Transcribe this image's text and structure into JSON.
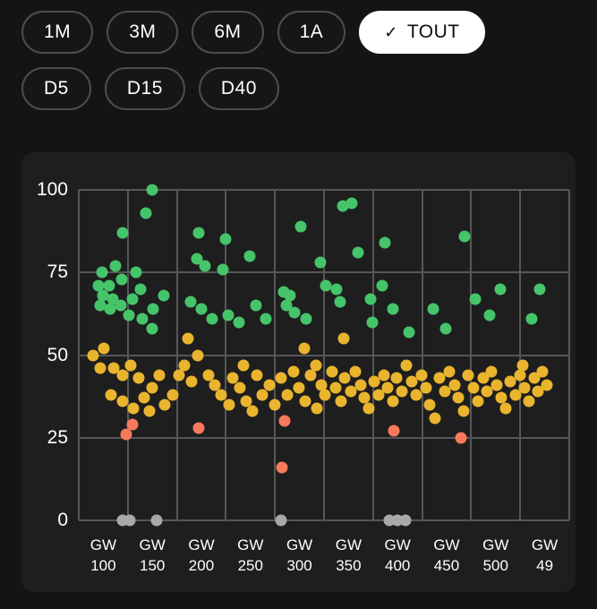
{
  "filters": {
    "rows": [
      {
        "items": [
          {
            "label": "1M",
            "selected": false
          },
          {
            "label": "3M",
            "selected": false
          },
          {
            "label": "6M",
            "selected": false
          },
          {
            "label": "1A",
            "selected": false
          },
          {
            "label": "TOUT",
            "selected": true,
            "check": "✓"
          }
        ]
      },
      {
        "items": [
          {
            "label": "D5",
            "selected": false
          },
          {
            "label": "D15",
            "selected": false
          },
          {
            "label": "D40",
            "selected": false
          }
        ]
      }
    ]
  },
  "chart_data": {
    "type": "scatter",
    "title": "",
    "xlabel": "",
    "ylabel": "",
    "xlim": [
      75,
      575
    ],
    "ylim": [
      0,
      100
    ],
    "yticks": [
      100,
      75,
      50,
      25,
      0
    ],
    "grid": true,
    "legend": "none",
    "x_categories": [
      {
        "l1": "GW",
        "l2": "100"
      },
      {
        "l1": "GW",
        "l2": "150"
      },
      {
        "l1": "GW",
        "l2": "200"
      },
      {
        "l1": "GW",
        "l2": "250"
      },
      {
        "l1": "GW",
        "l2": "300"
      },
      {
        "l1": "GW",
        "l2": "350"
      },
      {
        "l1": "GW",
        "l2": "400"
      },
      {
        "l1": "GW",
        "l2": "450"
      },
      {
        "l1": "GW",
        "l2": "500"
      },
      {
        "l1": "GW",
        "l2": "49"
      }
    ],
    "colors": {
      "g": "#45c46a",
      "y": "#e9b42e",
      "o": "#f8795c",
      "n": "#a8a8a8"
    },
    "point_format": [
      "gw",
      "value",
      "color"
    ],
    "points": [
      [
        150,
        100,
        "g"
      ],
      [
        143,
        93,
        "g"
      ],
      [
        344,
        95,
        "g"
      ],
      [
        353,
        96,
        "g"
      ],
      [
        120,
        87,
        "g"
      ],
      [
        197,
        87,
        "g"
      ],
      [
        225,
        85,
        "g"
      ],
      [
        301,
        89,
        "g"
      ],
      [
        468,
        86,
        "g"
      ],
      [
        387,
        84,
        "g"
      ],
      [
        360,
        81,
        "g"
      ],
      [
        99,
        75,
        "g"
      ],
      [
        112,
        77,
        "g"
      ],
      [
        195,
        79,
        "g"
      ],
      [
        204,
        77,
        "g"
      ],
      [
        222,
        76,
        "g"
      ],
      [
        249,
        80,
        "g"
      ],
      [
        321,
        78,
        "g"
      ],
      [
        95,
        71,
        "g"
      ],
      [
        106,
        71,
        "g"
      ],
      [
        119,
        73,
        "g"
      ],
      [
        133,
        75,
        "g"
      ],
      [
        100,
        68,
        "g"
      ],
      [
        110,
        67,
        "g"
      ],
      [
        97,
        65,
        "g"
      ],
      [
        107,
        64,
        "g"
      ],
      [
        118,
        65,
        "g"
      ],
      [
        130,
        67,
        "g"
      ],
      [
        138,
        70,
        "g"
      ],
      [
        126,
        62,
        "g"
      ],
      [
        140,
        61,
        "g"
      ],
      [
        151,
        64,
        "g"
      ],
      [
        162,
        68,
        "g"
      ],
      [
        150,
        58,
        "g"
      ],
      [
        189,
        66,
        "g"
      ],
      [
        200,
        64,
        "g"
      ],
      [
        211,
        61,
        "g"
      ],
      [
        227,
        62,
        "g"
      ],
      [
        238,
        60,
        "g"
      ],
      [
        256,
        65,
        "g"
      ],
      [
        266,
        61,
        "g"
      ],
      [
        284,
        69,
        "g"
      ],
      [
        290,
        68,
        "g"
      ],
      [
        287,
        65,
        "g"
      ],
      [
        295,
        63,
        "g"
      ],
      [
        307,
        61,
        "g"
      ],
      [
        341,
        66,
        "g"
      ],
      [
        327,
        71,
        "g"
      ],
      [
        338,
        70,
        "g"
      ],
      [
        372,
        67,
        "g"
      ],
      [
        384,
        71,
        "g"
      ],
      [
        374,
        60,
        "g"
      ],
      [
        395,
        64,
        "g"
      ],
      [
        412,
        57,
        "g"
      ],
      [
        436,
        64,
        "g"
      ],
      [
        449,
        58,
        "g"
      ],
      [
        479,
        67,
        "g"
      ],
      [
        494,
        62,
        "g"
      ],
      [
        505,
        70,
        "g"
      ],
      [
        537,
        61,
        "g"
      ],
      [
        545,
        70,
        "g"
      ],
      [
        90,
        50,
        "y"
      ],
      [
        101,
        52,
        "y"
      ],
      [
        97,
        46,
        "y"
      ],
      [
        111,
        46,
        "y"
      ],
      [
        120,
        44,
        "y"
      ],
      [
        128,
        47,
        "y"
      ],
      [
        136,
        43,
        "y"
      ],
      [
        108,
        38,
        "y"
      ],
      [
        120,
        36,
        "y"
      ],
      [
        131,
        34,
        "y"
      ],
      [
        142,
        37,
        "y"
      ],
      [
        150,
        40,
        "y"
      ],
      [
        157,
        44,
        "y"
      ],
      [
        147,
        33,
        "y"
      ],
      [
        163,
        35,
        "y"
      ],
      [
        171,
        38,
        "y"
      ],
      [
        177,
        44,
        "y"
      ],
      [
        183,
        47,
        "y"
      ],
      [
        190,
        42,
        "y"
      ],
      [
        196,
        50,
        "y"
      ],
      [
        186,
        55,
        "y"
      ],
      [
        207,
        44,
        "y"
      ],
      [
        214,
        41,
        "y"
      ],
      [
        220,
        38,
        "y"
      ],
      [
        228,
        35,
        "y"
      ],
      [
        232,
        43,
        "y"
      ],
      [
        239,
        40,
        "y"
      ],
      [
        246,
        36,
        "y"
      ],
      [
        252,
        33,
        "y"
      ],
      [
        243,
        47,
        "y"
      ],
      [
        257,
        44,
        "y"
      ],
      [
        262,
        38,
        "y"
      ],
      [
        269,
        41,
        "y"
      ],
      [
        275,
        35,
        "y"
      ],
      [
        281,
        43,
        "y"
      ],
      [
        288,
        38,
        "y"
      ],
      [
        294,
        45,
        "y"
      ],
      [
        299,
        40,
        "y"
      ],
      [
        305,
        52,
        "y"
      ],
      [
        306,
        36,
        "y"
      ],
      [
        311,
        44,
        "y"
      ],
      [
        317,
        47,
        "y"
      ],
      [
        322,
        41,
        "y"
      ],
      [
        318,
        34,
        "y"
      ],
      [
        326,
        38,
        "y"
      ],
      [
        333,
        45,
        "y"
      ],
      [
        337,
        40,
        "y"
      ],
      [
        342,
        36,
        "y"
      ],
      [
        346,
        43,
        "y"
      ],
      [
        352,
        39,
        "y"
      ],
      [
        345,
        55,
        "y"
      ],
      [
        357,
        45,
        "y"
      ],
      [
        362,
        41,
        "y"
      ],
      [
        366,
        37,
        "y"
      ],
      [
        371,
        34,
        "y"
      ],
      [
        376,
        42,
        "y"
      ],
      [
        381,
        38,
        "y"
      ],
      [
        386,
        44,
        "y"
      ],
      [
        390,
        40,
        "y"
      ],
      [
        395,
        36,
        "y"
      ],
      [
        399,
        43,
        "y"
      ],
      [
        404,
        39,
        "y"
      ],
      [
        409,
        47,
        "y"
      ],
      [
        414,
        42,
        "y"
      ],
      [
        419,
        38,
        "y"
      ],
      [
        424,
        44,
        "y"
      ],
      [
        429,
        40,
        "y"
      ],
      [
        433,
        35,
        "y"
      ],
      [
        438,
        31,
        "y"
      ],
      [
        443,
        43,
        "y"
      ],
      [
        448,
        39,
        "y"
      ],
      [
        453,
        45,
        "y"
      ],
      [
        458,
        41,
        "y"
      ],
      [
        462,
        37,
        "y"
      ],
      [
        467,
        33,
        "y"
      ],
      [
        472,
        44,
        "y"
      ],
      [
        477,
        40,
        "y"
      ],
      [
        482,
        36,
        "y"
      ],
      [
        487,
        43,
        "y"
      ],
      [
        491,
        39,
        "y"
      ],
      [
        496,
        45,
        "y"
      ],
      [
        501,
        41,
        "y"
      ],
      [
        506,
        37,
        "y"
      ],
      [
        510,
        34,
        "y"
      ],
      [
        515,
        42,
        "y"
      ],
      [
        520,
        38,
        "y"
      ],
      [
        525,
        44,
        "y"
      ],
      [
        529,
        40,
        "y"
      ],
      [
        534,
        36,
        "y"
      ],
      [
        539,
        43,
        "y"
      ],
      [
        543,
        39,
        "y"
      ],
      [
        548,
        45,
        "y"
      ],
      [
        552,
        41,
        "y"
      ],
      [
        528,
        47,
        "y"
      ],
      [
        123,
        26,
        "o"
      ],
      [
        130,
        29,
        "o"
      ],
      [
        197,
        28,
        "o"
      ],
      [
        282,
        16,
        "o"
      ],
      [
        285,
        30,
        "o"
      ],
      [
        396,
        27,
        "o"
      ],
      [
        465,
        25,
        "o"
      ],
      [
        120,
        0,
        "n"
      ],
      [
        127,
        0,
        "n"
      ],
      [
        154,
        0,
        "n"
      ],
      [
        281,
        0,
        "n"
      ],
      [
        392,
        0,
        "n"
      ],
      [
        400,
        0,
        "n"
      ],
      [
        408,
        0,
        "n"
      ]
    ]
  }
}
